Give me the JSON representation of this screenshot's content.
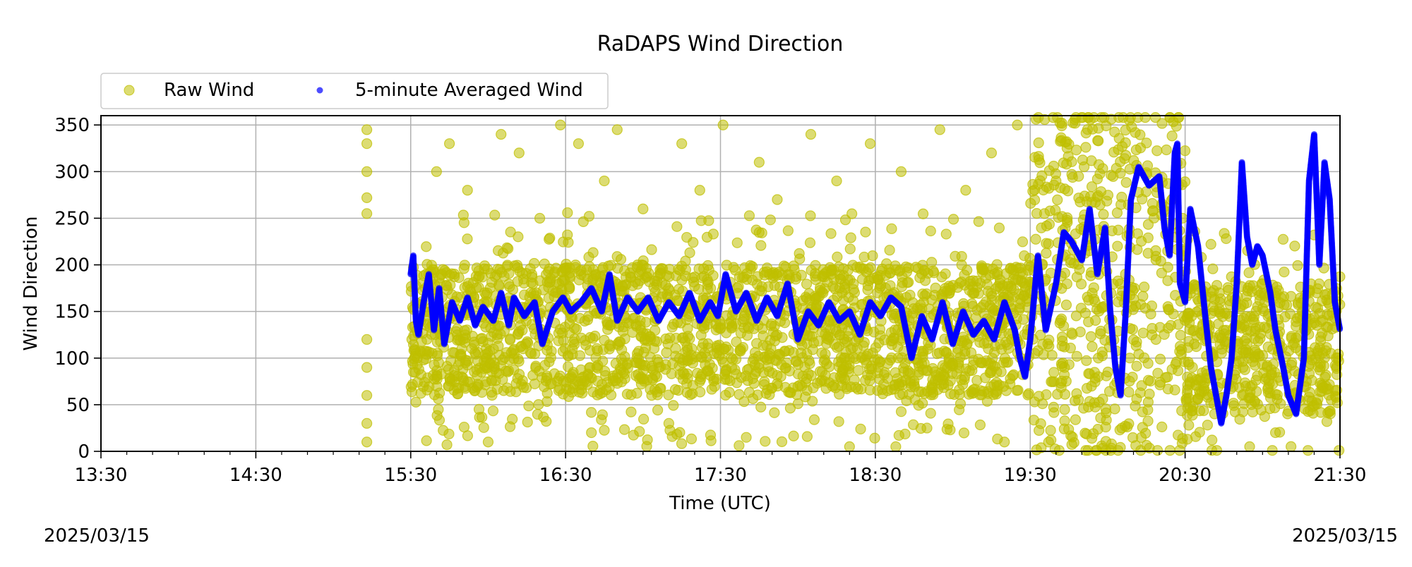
{
  "chart_data": {
    "type": "scatter",
    "title": "RaDAPS Wind Direction",
    "xlabel": "Time (UTC)",
    "ylabel": "Wind Direction",
    "xlim": [
      "13:30",
      "21:30"
    ],
    "ylim": [
      0,
      360
    ],
    "x_major_ticks": [
      "13:30",
      "14:30",
      "15:30",
      "16:30",
      "17:30",
      "18:30",
      "19:30",
      "20:30",
      "21:30"
    ],
    "x_minor_tick_interval_minutes": 10,
    "y_ticks": [
      0,
      50,
      100,
      150,
      200,
      250,
      300,
      350
    ],
    "grid": true,
    "legend": {
      "placement": "above-left",
      "columns": 2
    },
    "date_label_left": "2025/03/15",
    "date_label_right": "2025/03/15",
    "series": [
      {
        "name": "Raw Wind",
        "color": "#bfbf00",
        "marker": "circle",
        "alpha": 0.55,
        "points": [
          [
            "15:13",
            255
          ],
          [
            "15:13",
            272
          ],
          [
            "15:13",
            300
          ],
          [
            "15:13",
            330
          ],
          [
            "15:13",
            345
          ],
          [
            "15:13",
            120
          ],
          [
            "15:13",
            90
          ],
          [
            "15:13",
            60
          ],
          [
            "15:13",
            30
          ],
          [
            "15:13",
            10
          ],
          [
            "15:40",
            300
          ],
          [
            "15:45",
            330
          ],
          [
            "15:52",
            280
          ],
          [
            "16:05",
            340
          ],
          [
            "16:12",
            320
          ],
          [
            "16:20",
            250
          ],
          [
            "16:28",
            350
          ],
          [
            "16:35",
            330
          ],
          [
            "16:45",
            290
          ],
          [
            "16:50",
            345
          ],
          [
            "17:00",
            260
          ],
          [
            "17:15",
            330
          ],
          [
            "17:22",
            280
          ],
          [
            "17:31",
            350
          ],
          [
            "17:45",
            310
          ],
          [
            "17:52",
            270
          ],
          [
            "18:05",
            340
          ],
          [
            "18:15",
            290
          ],
          [
            "18:28",
            330
          ],
          [
            "18:40",
            300
          ],
          [
            "18:55",
            345
          ],
          [
            "19:05",
            280
          ],
          [
            "19:15",
            320
          ],
          [
            "19:25",
            350
          ],
          [
            "19:40",
            290
          ],
          [
            "16:00",
            10
          ],
          [
            "16:40",
            20
          ],
          [
            "17:10",
            30
          ],
          [
            "17:40",
            15
          ],
          [
            "18:20",
            5
          ],
          [
            "18:50",
            25
          ],
          [
            "19:20",
            10
          ],
          [
            "20:55",
            5
          ],
          [
            "21:05",
            20
          ],
          [
            "21:20",
            232
          ]
        ],
        "density_band": [
          {
            "from": "15:30",
            "to": "19:30",
            "low": 60,
            "high": 200
          },
          {
            "from": "19:30",
            "to": "20:30",
            "low": 0,
            "high": 360
          },
          {
            "from": "20:30",
            "to": "21:30",
            "low": 40,
            "high": 180
          }
        ]
      },
      {
        "name": "5-minute Averaged Wind",
        "color": "#0000ff",
        "marker": "circle",
        "alpha": 0.7,
        "trace": [
          [
            "15:30",
            190
          ],
          [
            "15:31",
            210
          ],
          [
            "15:32",
            140
          ],
          [
            "15:33",
            125
          ],
          [
            "15:35",
            160
          ],
          [
            "15:37",
            190
          ],
          [
            "15:39",
            130
          ],
          [
            "15:41",
            175
          ],
          [
            "15:43",
            115
          ],
          [
            "15:46",
            160
          ],
          [
            "15:49",
            140
          ],
          [
            "15:52",
            165
          ],
          [
            "15:55",
            135
          ],
          [
            "15:58",
            155
          ],
          [
            "16:02",
            140
          ],
          [
            "16:05",
            170
          ],
          [
            "16:08",
            135
          ],
          [
            "16:10",
            165
          ],
          [
            "16:14",
            145
          ],
          [
            "16:18",
            160
          ],
          [
            "16:21",
            115
          ],
          [
            "16:25",
            150
          ],
          [
            "16:29",
            165
          ],
          [
            "16:32",
            150
          ],
          [
            "16:36",
            160
          ],
          [
            "16:40",
            175
          ],
          [
            "16:44",
            150
          ],
          [
            "16:47",
            190
          ],
          [
            "16:50",
            140
          ],
          [
            "16:54",
            165
          ],
          [
            "16:58",
            150
          ],
          [
            "17:02",
            165
          ],
          [
            "17:06",
            140
          ],
          [
            "17:10",
            160
          ],
          [
            "17:14",
            145
          ],
          [
            "17:18",
            170
          ],
          [
            "17:22",
            140
          ],
          [
            "17:26",
            160
          ],
          [
            "17:29",
            145
          ],
          [
            "17:32",
            190
          ],
          [
            "17:36",
            150
          ],
          [
            "17:40",
            170
          ],
          [
            "17:44",
            140
          ],
          [
            "17:48",
            165
          ],
          [
            "17:52",
            145
          ],
          [
            "17:56",
            180
          ],
          [
            "18:00",
            120
          ],
          [
            "18:04",
            150
          ],
          [
            "18:08",
            135
          ],
          [
            "18:12",
            160
          ],
          [
            "18:16",
            140
          ],
          [
            "18:20",
            150
          ],
          [
            "18:24",
            125
          ],
          [
            "18:28",
            160
          ],
          [
            "18:32",
            145
          ],
          [
            "18:36",
            165
          ],
          [
            "18:40",
            155
          ],
          [
            "18:44",
            100
          ],
          [
            "18:48",
            145
          ],
          [
            "18:52",
            120
          ],
          [
            "18:56",
            160
          ],
          [
            "19:00",
            115
          ],
          [
            "19:04",
            150
          ],
          [
            "19:08",
            125
          ],
          [
            "19:12",
            140
          ],
          [
            "19:16",
            120
          ],
          [
            "19:20",
            160
          ],
          [
            "19:24",
            130
          ],
          [
            "19:26",
            100
          ],
          [
            "19:28",
            80
          ],
          [
            "19:30",
            120
          ],
          [
            "19:33",
            210
          ],
          [
            "19:36",
            130
          ],
          [
            "19:40",
            180
          ],
          [
            "19:43",
            235
          ],
          [
            "19:46",
            225
          ],
          [
            "19:50",
            205
          ],
          [
            "19:53",
            260
          ],
          [
            "19:56",
            190
          ],
          [
            "19:59",
            240
          ],
          [
            "20:01",
            150
          ],
          [
            "20:03",
            90
          ],
          [
            "20:05",
            60
          ],
          [
            "20:07",
            150
          ],
          [
            "20:09",
            270
          ],
          [
            "20:12",
            305
          ],
          [
            "20:16",
            285
          ],
          [
            "20:20",
            295
          ],
          [
            "20:22",
            240
          ],
          [
            "20:24",
            210
          ],
          [
            "20:26",
            320
          ],
          [
            "20:27",
            330
          ],
          [
            "20:28",
            180
          ],
          [
            "20:30",
            160
          ],
          [
            "20:32",
            260
          ],
          [
            "20:35",
            220
          ],
          [
            "20:38",
            140
          ],
          [
            "20:40",
            90
          ],
          [
            "20:42",
            60
          ],
          [
            "20:44",
            30
          ],
          [
            "20:46",
            60
          ],
          [
            "20:48",
            100
          ],
          [
            "20:50",
            180
          ],
          [
            "20:52",
            310
          ],
          [
            "20:54",
            230
          ],
          [
            "20:56",
            200
          ],
          [
            "20:58",
            220
          ],
          [
            "21:00",
            210
          ],
          [
            "21:03",
            170
          ],
          [
            "21:05",
            130
          ],
          [
            "21:08",
            90
          ],
          [
            "21:10",
            60
          ],
          [
            "21:13",
            40
          ],
          [
            "21:16",
            100
          ],
          [
            "21:18",
            290
          ],
          [
            "21:20",
            340
          ],
          [
            "21:22",
            200
          ],
          [
            "21:24",
            310
          ],
          [
            "21:26",
            270
          ],
          [
            "21:28",
            160
          ],
          [
            "21:30",
            130
          ]
        ]
      }
    ]
  }
}
